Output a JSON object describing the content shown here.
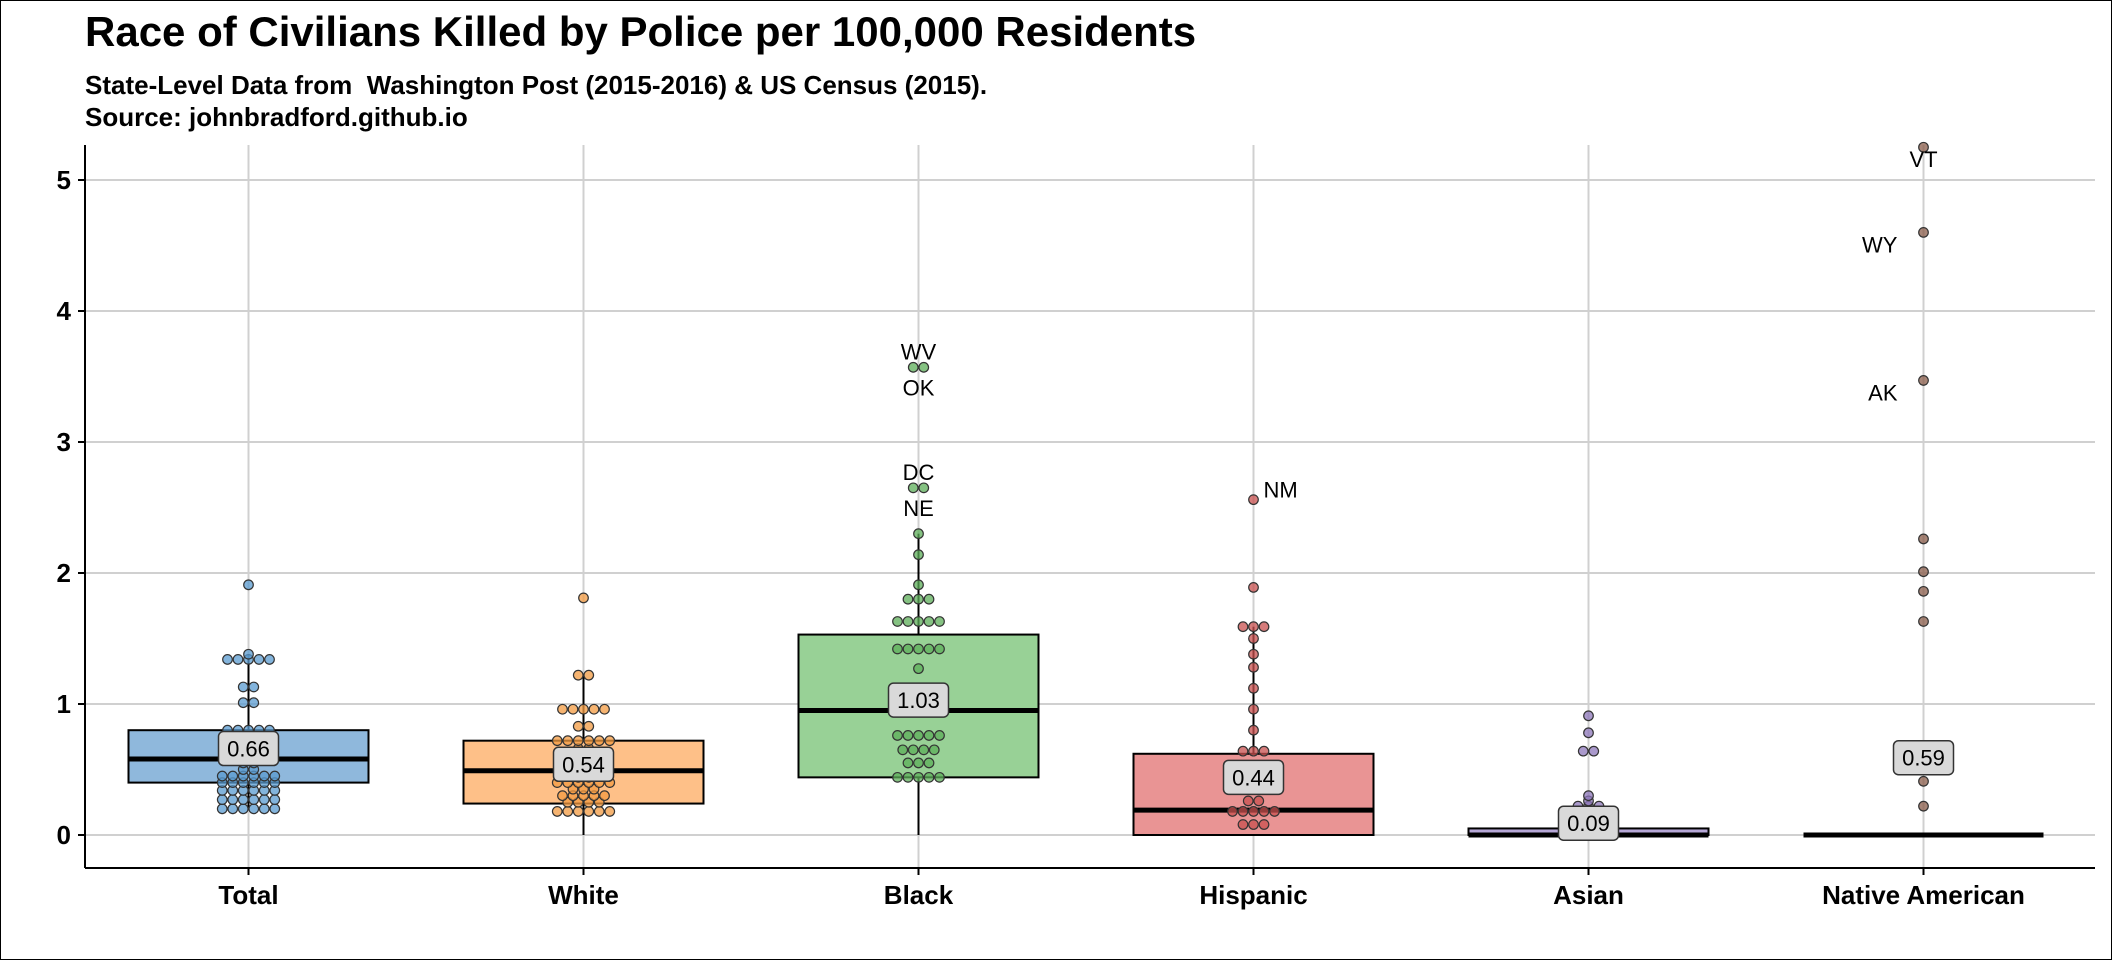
{
  "title": "Race of Civilians Killed by Police per 100,000 Residents",
  "subtitle": {
    "line1": "State-Level Data from  Washington Post (2015-2016) & US Census (2015).",
    "line2": "Source: johnbradford.github.io"
  },
  "chart_data": {
    "type": "boxplot",
    "title": "Race of Civilians Killed by Police per 100,000 Residents",
    "ylim": [
      -0.25,
      5.25
    ],
    "y_ticks": [
      0,
      1,
      2,
      3,
      4,
      5
    ],
    "grid": true,
    "categories": [
      "Total",
      "White",
      "Black",
      "Hispanic",
      "Asian",
      "Native American"
    ],
    "series": [
      {
        "category": "Total",
        "color": "#8fb8dc",
        "dot_color": "#5a9bd0",
        "box": {
          "q1": 0.4,
          "median": 0.58,
          "q3": 0.8,
          "whisker_low": 0.2,
          "whisker_high": 1.38
        },
        "mean_label": "0.66",
        "mean": 0.66,
        "points": [
          0.2,
          0.2,
          0.2,
          0.2,
          0.2,
          0.2,
          0.27,
          0.27,
          0.27,
          0.27,
          0.27,
          0.27,
          0.34,
          0.34,
          0.34,
          0.34,
          0.34,
          0.34,
          0.4,
          0.4,
          0.4,
          0.4,
          0.4,
          0.4,
          0.45,
          0.45,
          0.45,
          0.45,
          0.45,
          0.45,
          0.5,
          0.5,
          0.55,
          0.55,
          0.6,
          0.6,
          0.7,
          0.7,
          0.8,
          0.8,
          0.8,
          0.8,
          0.8,
          1.01,
          1.01,
          1.13,
          1.13,
          1.34,
          1.34,
          1.34,
          1.34,
          1.34,
          1.38,
          1.91
        ],
        "labeled_points": []
      },
      {
        "category": "White",
        "color": "#fec088",
        "dot_color": "#f39b42",
        "box": {
          "q1": 0.24,
          "median": 0.49,
          "q3": 0.72,
          "whisker_low": 0.0,
          "whisker_high": 1.22
        },
        "mean_label": "0.54",
        "mean": 0.54,
        "points": [
          0.18,
          0.18,
          0.18,
          0.18,
          0.18,
          0.18,
          0.25,
          0.25,
          0.25,
          0.25,
          0.3,
          0.3,
          0.3,
          0.3,
          0.3,
          0.35,
          0.35,
          0.35,
          0.4,
          0.4,
          0.4,
          0.4,
          0.4,
          0.4,
          0.44,
          0.44,
          0.5,
          0.5,
          0.5,
          0.5,
          0.58,
          0.58,
          0.6,
          0.6,
          0.66,
          0.66,
          0.72,
          0.72,
          0.72,
          0.72,
          0.72,
          0.72,
          0.83,
          0.83,
          0.96,
          0.96,
          0.96,
          0.96,
          0.96,
          1.22,
          1.22,
          1.81
        ],
        "labeled_points": []
      },
      {
        "category": "Black",
        "color": "#98d196",
        "dot_color": "#5cae58",
        "box": {
          "q1": 0.44,
          "median": 0.95,
          "q3": 1.53,
          "whisker_low": 0.0,
          "whisker_high": 2.3
        },
        "mean_label": "1.03",
        "mean": 1.03,
        "points": [
          0.44,
          0.44,
          0.44,
          0.44,
          0.44,
          0.55,
          0.55,
          0.55,
          0.65,
          0.65,
          0.65,
          0.65,
          0.76,
          0.76,
          0.76,
          0.76,
          0.76,
          0.96,
          0.96,
          1.06,
          1.06,
          1.06,
          1.27,
          1.42,
          1.42,
          1.42,
          1.42,
          1.42,
          1.63,
          1.63,
          1.63,
          1.63,
          1.63,
          1.8,
          1.8,
          1.8,
          1.91,
          2.14,
          2.3,
          2.65,
          2.65,
          3.57,
          3.57
        ],
        "labeled_points": [
          {
            "label": "WV",
            "y": 3.57
          },
          {
            "label": "OK",
            "y": 3.57
          },
          {
            "label": "DC",
            "y": 2.65
          },
          {
            "label": "NE",
            "y": 2.65
          }
        ]
      },
      {
        "category": "Hispanic",
        "color": "#e99494",
        "dot_color": "#c8504f",
        "box": {
          "q1": 0.0,
          "median": 0.19,
          "q3": 0.62,
          "whisker_low": 0.0,
          "whisker_high": 1.59
        },
        "mean_label": "0.44",
        "mean": 0.44,
        "points": [
          0.08,
          0.08,
          0.08,
          0.18,
          0.18,
          0.18,
          0.18,
          0.18,
          0.26,
          0.26,
          0.38,
          0.38,
          0.5,
          0.5,
          0.5,
          0.64,
          0.64,
          0.64,
          0.8,
          0.96,
          1.12,
          1.28,
          1.38,
          1.5,
          1.59,
          1.59,
          1.59,
          1.89,
          2.56
        ],
        "labeled_points": [
          {
            "label": "NM",
            "y": 2.56
          }
        ]
      },
      {
        "category": "Asian",
        "color": "#b6a7d6",
        "dot_color": "#8e77bb",
        "box": {
          "q1": 0.0,
          "median": 0.0,
          "q3": 0.05,
          "whisker_low": 0.0,
          "whisker_high": 0.09
        },
        "mean_label": "0.09",
        "mean": 0.09,
        "points": [
          0.18,
          0.22,
          0.22,
          0.22,
          0.26,
          0.3,
          0.64,
          0.64,
          0.78,
          0.91
        ],
        "labeled_points": []
      },
      {
        "category": "Native American",
        "color": "#b07e6c",
        "dot_color": "#8a5c4a",
        "box": {
          "q1": 0.0,
          "median": 0.0,
          "q3": 0.0,
          "whisker_low": 0.0,
          "whisker_high": 0.0
        },
        "mean_label": "0.59",
        "mean": 0.59,
        "points": [
          0.22,
          0.41,
          1.63,
          1.86,
          2.01,
          2.26,
          3.47,
          4.6,
          5.25
        ],
        "labeled_points": [
          {
            "label": "VT",
            "y": 5.1
          },
          {
            "label": "WY",
            "y": 4.6
          },
          {
            "label": "AK",
            "y": 3.47
          }
        ]
      }
    ]
  }
}
